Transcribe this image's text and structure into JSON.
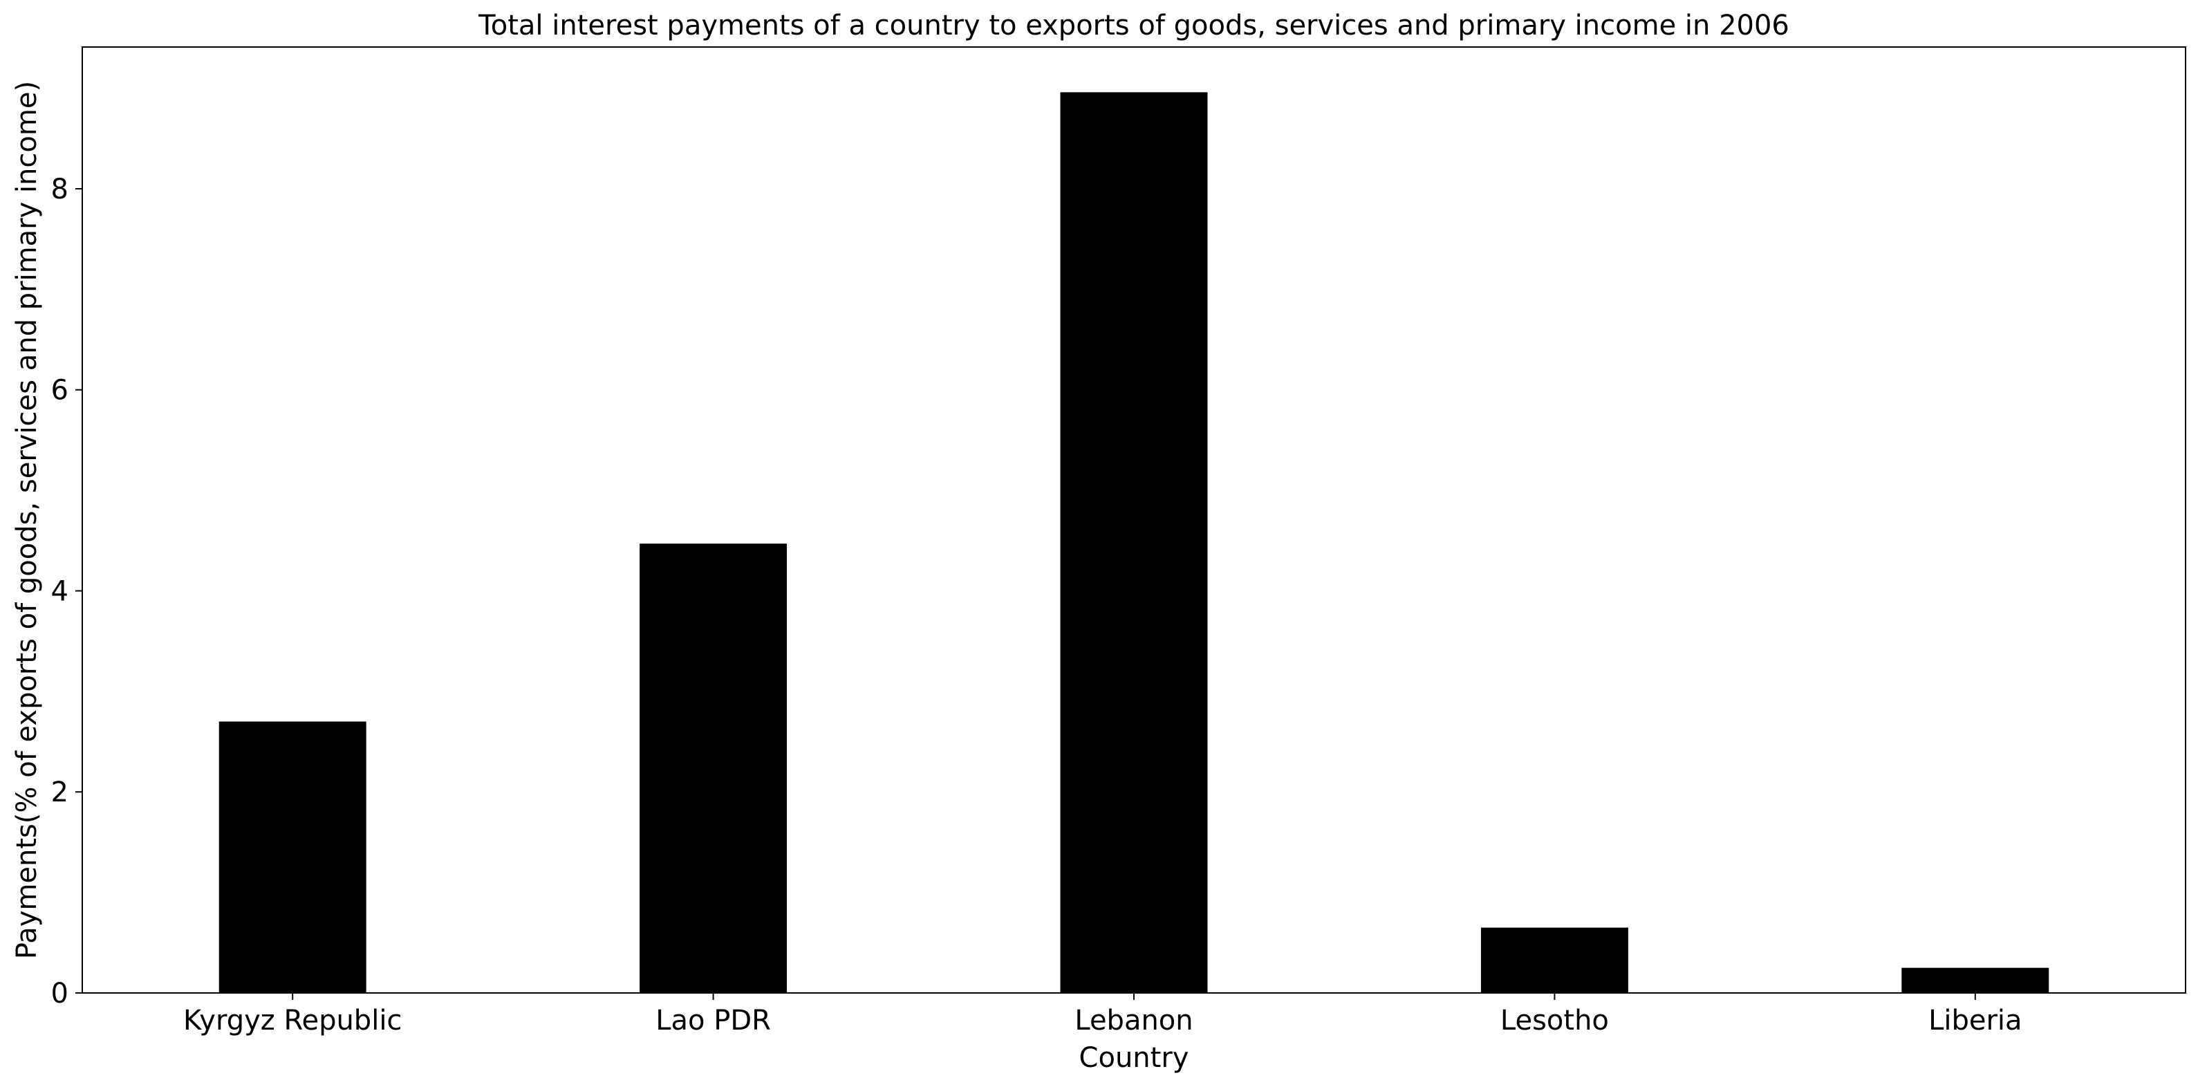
{
  "chart_data": {
    "type": "bar",
    "title": "Total interest payments of a country to exports of goods, services and primary income in 2006",
    "xlabel": "Country",
    "ylabel": "Payments(% of exports of goods, services and primary income)",
    "categories": [
      "Kyrgyz Republic",
      "Lao PDR",
      "Lebanon",
      "Lesotho",
      "Liberia"
    ],
    "values": [
      2.7,
      4.47,
      8.96,
      0.65,
      0.25
    ],
    "ylim": [
      0,
      9.41
    ],
    "yticks": [
      0,
      2,
      4,
      6,
      8
    ],
    "bar_color": "#000000",
    "grid": false,
    "legend": "none"
  }
}
